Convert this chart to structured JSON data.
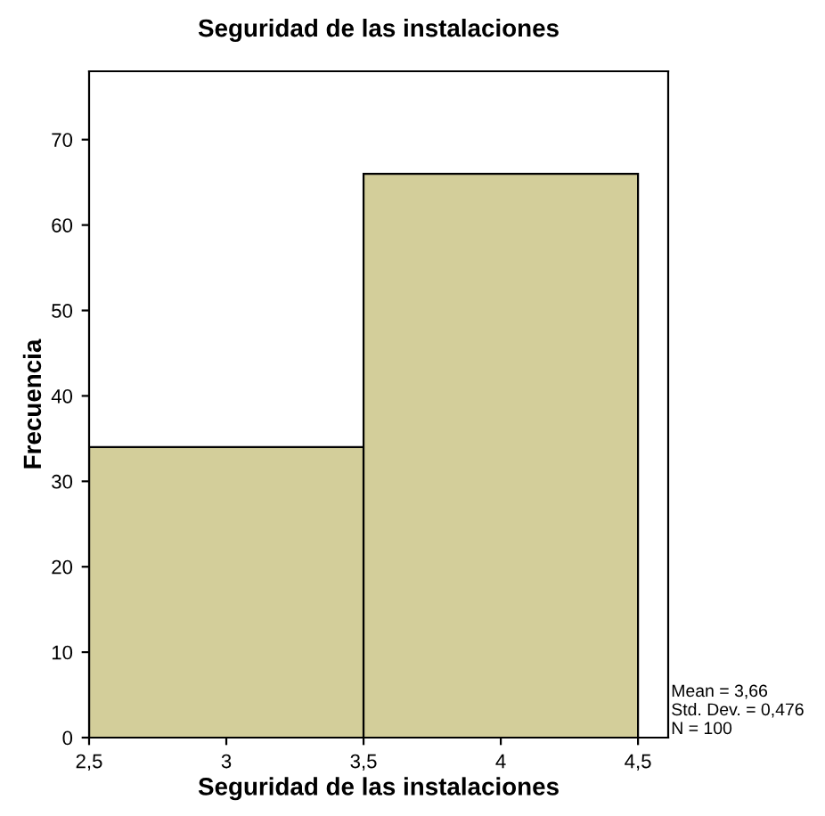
{
  "chart_data": {
    "type": "histogram",
    "title": "Seguridad de las instalaciones",
    "xlabel": "Seguridad de las instalaciones",
    "ylabel": "Frecuencia",
    "bins": [
      2.5,
      3.5,
      4.5
    ],
    "values": [
      34,
      66
    ],
    "color": "#d3ce9a",
    "xlim": [
      2.5,
      4.61
    ],
    "xticks": [
      {
        "value": 2.5,
        "label": "2,5"
      },
      3,
      {
        "value": 3.5,
        "label": "3,5"
      },
      4,
      {
        "value": 4.5,
        "label": "4,5"
      }
    ],
    "ylim": [
      0,
      78
    ],
    "yticks": [
      0,
      10,
      20,
      30,
      40,
      50,
      60,
      70
    ],
    "grid": false,
    "legend": false,
    "annotations": [
      "Mean = 3,66",
      "Std. Dev. = 0,476",
      "N = 100"
    ]
  }
}
